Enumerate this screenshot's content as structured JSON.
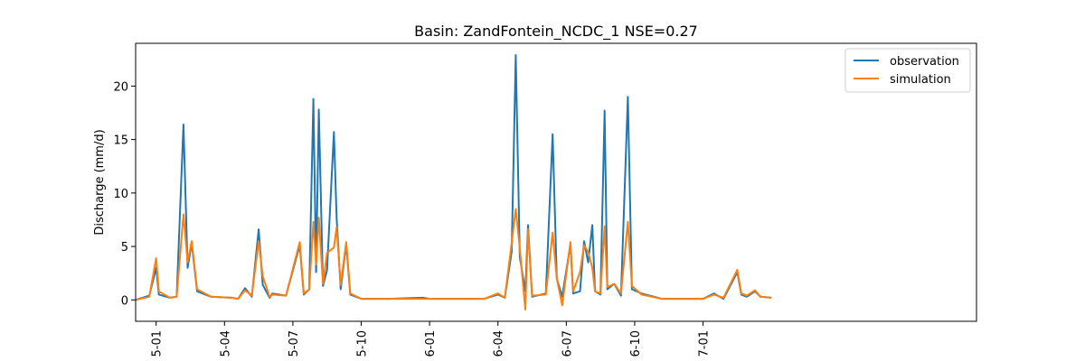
{
  "chart_data": {
    "type": "line",
    "title": "Basin: ZandFontein_NCDC_1 NSE=0.27",
    "xlabel": "",
    "ylabel": "Discharge (mm/d)",
    "xlim": [
      1994.85,
      2001.0
    ],
    "ylim": [
      -2.0,
      24.0
    ],
    "x_ticks": [
      {
        "value": 1995.0,
        "label": "5-01"
      },
      {
        "value": 1995.5,
        "label": "5-04"
      },
      {
        "value": 1996.0,
        "label": "5-07"
      },
      {
        "value": 1996.5,
        "label": "5-10"
      },
      {
        "value": 1997.0,
        "label": "6-01"
      },
      {
        "value": 1997.5,
        "label": "6-04"
      },
      {
        "value": 1998.0,
        "label": "6-07"
      },
      {
        "value": 1998.5,
        "label": "6-10"
      },
      {
        "value": 1999.0,
        "label": "7-01"
      }
    ],
    "x_tick_values": [
      1995.0,
      1995.5,
      1996.0,
      1996.5,
      1997.0,
      1997.5,
      1998.0,
      1998.5,
      1999.0
    ],
    "y_ticks": [
      0,
      5,
      10,
      15,
      20
    ],
    "legend": {
      "placement": "top-right"
    },
    "grid": false,
    "series": [
      {
        "name": "observation",
        "color": "#1f77b4",
        "points": [
          [
            1994.85,
            0
          ],
          [
            1994.95,
            0.4
          ],
          [
            1995.0,
            3.0
          ],
          [
            1995.02,
            0.5
          ],
          [
            1995.1,
            0.2
          ],
          [
            1995.15,
            0.3
          ],
          [
            1995.2,
            16.4
          ],
          [
            1995.23,
            3.0
          ],
          [
            1995.26,
            5.3
          ],
          [
            1995.3,
            0.8
          ],
          [
            1995.4,
            0.3
          ],
          [
            1995.55,
            0.2
          ],
          [
            1995.6,
            0.1
          ],
          [
            1995.65,
            1.1
          ],
          [
            1995.7,
            0.3
          ],
          [
            1995.75,
            6.6
          ],
          [
            1995.78,
            1.4
          ],
          [
            1995.83,
            0.2
          ],
          [
            1995.85,
            0.6
          ],
          [
            1995.95,
            0.4
          ],
          [
            1996.05,
            5.1
          ],
          [
            1996.08,
            0.5
          ],
          [
            1996.12,
            1.0
          ],
          [
            1996.15,
            18.8
          ],
          [
            1996.17,
            2.6
          ],
          [
            1996.19,
            17.8
          ],
          [
            1996.22,
            1.3
          ],
          [
            1996.25,
            2.8
          ],
          [
            1996.3,
            15.7
          ],
          [
            1996.32,
            7.7
          ],
          [
            1996.35,
            1.0
          ],
          [
            1996.39,
            5.2
          ],
          [
            1996.42,
            0.5
          ],
          [
            1996.5,
            0.1
          ],
          [
            1996.6,
            0.1
          ],
          [
            1996.7,
            0.1
          ],
          [
            1996.95,
            0.2
          ],
          [
            1997.0,
            0.1
          ],
          [
            1997.1,
            0.1
          ],
          [
            1997.2,
            0.1
          ],
          [
            1997.3,
            0.1
          ],
          [
            1997.4,
            0.1
          ],
          [
            1997.5,
            0.5
          ],
          [
            1997.55,
            0.2
          ],
          [
            1997.6,
            4.5
          ],
          [
            1997.63,
            22.9
          ],
          [
            1997.66,
            4.0
          ],
          [
            1997.7,
            0.8
          ],
          [
            1997.72,
            7.0
          ],
          [
            1997.75,
            0.3
          ],
          [
            1997.85,
            0.6
          ],
          [
            1997.9,
            15.5
          ],
          [
            1997.93,
            2.0
          ],
          [
            1997.97,
            0.3
          ],
          [
            1998.03,
            5.2
          ],
          [
            1998.05,
            0.6
          ],
          [
            1998.1,
            0.8
          ],
          [
            1998.13,
            5.5
          ],
          [
            1998.16,
            3.5
          ],
          [
            1998.19,
            7.0
          ],
          [
            1998.21,
            0.8
          ],
          [
            1998.25,
            0.5
          ],
          [
            1998.28,
            17.7
          ],
          [
            1998.3,
            1.0
          ],
          [
            1998.35,
            1.5
          ],
          [
            1998.4,
            0.4
          ],
          [
            1998.45,
            19.0
          ],
          [
            1998.48,
            1.0
          ],
          [
            1998.55,
            0.6
          ],
          [
            1998.7,
            0.1
          ],
          [
            1998.9,
            0.1
          ],
          [
            1999.0,
            0.1
          ],
          [
            1999.08,
            0.6
          ],
          [
            1999.15,
            0.1
          ],
          [
            1999.25,
            2.6
          ],
          [
            1999.28,
            0.5
          ],
          [
            1999.32,
            0.3
          ],
          [
            1999.38,
            0.8
          ],
          [
            1999.42,
            0.3
          ],
          [
            1999.5,
            0.2
          ]
        ]
      },
      {
        "name": "simulation",
        "color": "#ff7f0e",
        "points": [
          [
            1994.85,
            0
          ],
          [
            1994.95,
            0.3
          ],
          [
            1995.0,
            3.9
          ],
          [
            1995.02,
            0.8
          ],
          [
            1995.1,
            0.2
          ],
          [
            1995.15,
            0.3
          ],
          [
            1995.2,
            8.0
          ],
          [
            1995.23,
            3.5
          ],
          [
            1995.26,
            5.5
          ],
          [
            1995.3,
            1.0
          ],
          [
            1995.4,
            0.3
          ],
          [
            1995.55,
            0.2
          ],
          [
            1995.6,
            0.1
          ],
          [
            1995.65,
            0.9
          ],
          [
            1995.7,
            0.4
          ],
          [
            1995.75,
            5.5
          ],
          [
            1995.78,
            2.2
          ],
          [
            1995.83,
            0.3
          ],
          [
            1995.85,
            0.5
          ],
          [
            1995.95,
            0.4
          ],
          [
            1996.05,
            5.4
          ],
          [
            1996.08,
            0.6
          ],
          [
            1996.12,
            1.0
          ],
          [
            1996.15,
            7.3
          ],
          [
            1996.17,
            3.3
          ],
          [
            1996.19,
            7.7
          ],
          [
            1996.22,
            1.5
          ],
          [
            1996.25,
            4.4
          ],
          [
            1996.3,
            4.9
          ],
          [
            1996.32,
            6.8
          ],
          [
            1996.35,
            1.4
          ],
          [
            1996.39,
            5.4
          ],
          [
            1996.42,
            0.6
          ],
          [
            1996.5,
            0.1
          ],
          [
            1996.6,
            0.1
          ],
          [
            1996.7,
            0.1
          ],
          [
            1996.95,
            0.1
          ],
          [
            1997.0,
            0.1
          ],
          [
            1997.1,
            0.1
          ],
          [
            1997.2,
            0.1
          ],
          [
            1997.3,
            0.1
          ],
          [
            1997.4,
            0.1
          ],
          [
            1997.5,
            0.6
          ],
          [
            1997.55,
            0.2
          ],
          [
            1997.6,
            5.3
          ],
          [
            1997.63,
            8.5
          ],
          [
            1997.66,
            4.8
          ],
          [
            1997.7,
            -0.9
          ],
          [
            1997.72,
            6.6
          ],
          [
            1997.75,
            0.4
          ],
          [
            1997.85,
            0.5
          ],
          [
            1997.9,
            6.3
          ],
          [
            1997.93,
            2.0
          ],
          [
            1997.97,
            -0.5
          ],
          [
            1998.03,
            5.4
          ],
          [
            1998.05,
            0.8
          ],
          [
            1998.1,
            2.6
          ],
          [
            1998.13,
            5.1
          ],
          [
            1998.16,
            4.5
          ],
          [
            1998.19,
            3.0
          ],
          [
            1998.21,
            0.8
          ],
          [
            1998.25,
            0.6
          ],
          [
            1998.28,
            6.9
          ],
          [
            1998.3,
            1.2
          ],
          [
            1998.35,
            1.5
          ],
          [
            1998.4,
            0.6
          ],
          [
            1998.45,
            7.3
          ],
          [
            1998.48,
            1.3
          ],
          [
            1998.55,
            0.5
          ],
          [
            1998.7,
            0.1
          ],
          [
            1998.9,
            0.1
          ],
          [
            1999.0,
            0.1
          ],
          [
            1999.08,
            0.5
          ],
          [
            1999.15,
            0.2
          ],
          [
            1999.25,
            2.8
          ],
          [
            1999.28,
            0.6
          ],
          [
            1999.32,
            0.4
          ],
          [
            1999.38,
            0.9
          ],
          [
            1999.42,
            0.3
          ],
          [
            1999.5,
            0.2
          ]
        ]
      }
    ]
  }
}
